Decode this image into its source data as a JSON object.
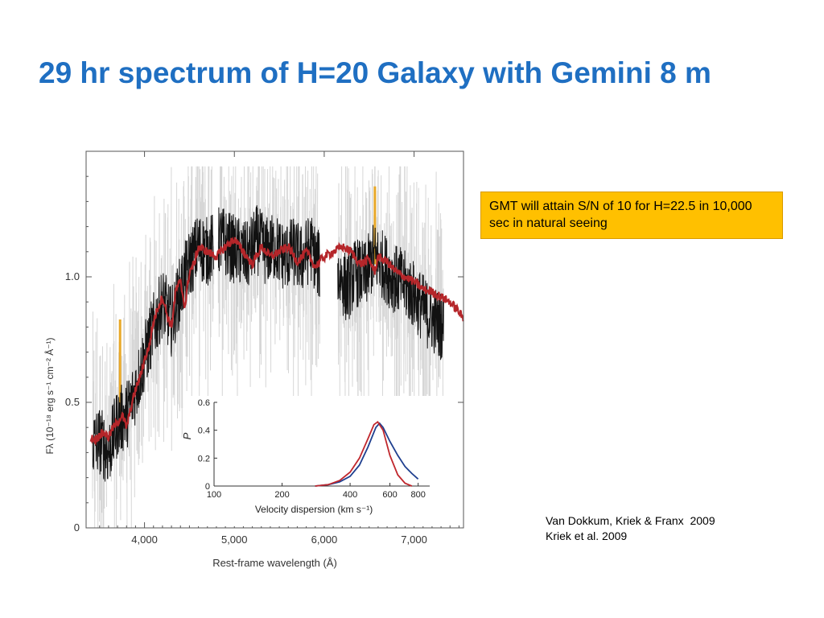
{
  "title": "29 hr spectrum of H=20 Galaxy with Gemini 8 m",
  "callout": {
    "text": "GMT will attain S/N of 10 for H=22.5 in 10,000 sec in natural seeing",
    "color": "#ffc000"
  },
  "references": [
    "Van Dokkum, Kriek & Franx  2009",
    "Kriek et al. 2009"
  ],
  "colors": {
    "title": "#1f6fc2",
    "spectrum_raw": "#d6d6d6",
    "spectrum_binned": "#111111",
    "model": "#b5262a",
    "highlight": "#e8a828",
    "inset_blue": "#1f3f8f",
    "inset_red": "#c0272d"
  },
  "chart_data": [
    {
      "type": "line",
      "xlabel": "Rest-frame wavelength (Å)",
      "ylabel": "Fλ (10⁻¹⁸ erg s⁻¹ cm⁻² Å⁻¹)",
      "xlim": [
        3350,
        7550
      ],
      "ylim": [
        0,
        1.5
      ],
      "xticks": [
        4000,
        5000,
        6000,
        7000
      ],
      "xtick_labels": [
        "4,000",
        "5,000",
        "6,000",
        "7,000"
      ],
      "yticks": [
        0,
        0.5,
        1.0
      ],
      "ytick_labels": [
        "0",
        "0.5",
        "1.0"
      ],
      "gaps": [
        [
          4770,
          4820
        ],
        [
          5950,
          6150
        ]
      ],
      "highlights": [
        {
          "x": 3728,
          "y_min": 0.45,
          "y_max": 0.83
        },
        {
          "x": 6564,
          "y_min": 1.05,
          "y_max": 1.36
        }
      ],
      "series": [
        {
          "style": "model",
          "x": [
            3400,
            3450,
            3500,
            3550,
            3600,
            3650,
            3700,
            3750,
            3800,
            3850,
            3900,
            3950,
            4000,
            4050,
            4100,
            4150,
            4200,
            4250,
            4300,
            4350,
            4400,
            4450,
            4500,
            4550,
            4600,
            4700,
            4800,
            4900,
            5000,
            5100,
            5200,
            5300,
            5400,
            5500,
            5600,
            5700,
            5800,
            5900,
            6000,
            6100,
            6200,
            6300,
            6400,
            6500,
            6560,
            6600,
            6700,
            6800,
            6900,
            7000,
            7100,
            7200,
            7300,
            7400,
            7500,
            7550
          ],
          "y": [
            0.36,
            0.35,
            0.37,
            0.38,
            0.36,
            0.4,
            0.42,
            0.45,
            0.4,
            0.48,
            0.55,
            0.6,
            0.67,
            0.72,
            0.82,
            0.88,
            0.92,
            0.85,
            0.8,
            0.95,
            0.98,
            0.88,
            1.02,
            1.05,
            1.12,
            1.1,
            1.08,
            1.12,
            1.15,
            1.1,
            1.05,
            1.12,
            1.08,
            1.1,
            1.12,
            1.06,
            1.1,
            1.04,
            1.08,
            1.1,
            1.12,
            1.1,
            1.05,
            1.07,
            1.02,
            1.08,
            1.06,
            1.02,
            1.0,
            0.98,
            0.95,
            0.94,
            0.92,
            0.9,
            0.86,
            0.83
          ]
        },
        {
          "style": "binned",
          "x": [
            3420,
            3500,
            3600,
            3700,
            3800,
            3900,
            4000,
            4100,
            4200,
            4300,
            4400,
            4500,
            4600,
            4700,
            4850,
            4950,
            5050,
            5150,
            5250,
            5350,
            5450,
            5550,
            5650,
            5750,
            5850,
            5930,
            6180,
            6250,
            6350,
            6450,
            6550,
            6650,
            6750,
            6850,
            6950,
            7050,
            7150,
            7250,
            7330
          ],
          "y": [
            0.33,
            0.35,
            0.3,
            0.42,
            0.45,
            0.55,
            0.68,
            0.8,
            0.9,
            0.82,
            0.95,
            1.05,
            1.12,
            1.1,
            1.15,
            1.12,
            1.1,
            1.08,
            1.15,
            1.1,
            1.12,
            1.08,
            1.1,
            1.07,
            1.12,
            1.05,
            1.0,
            0.95,
            1.02,
            1.0,
            1.08,
            1.05,
            1.0,
            0.98,
            0.95,
            0.9,
            0.85,
            0.82,
            0.8
          ]
        }
      ]
    },
    {
      "type": "line",
      "xlabel": "Velocity dispersion (km s⁻¹)",
      "ylabel": "P",
      "xscale": "log",
      "xlim": [
        100,
        900
      ],
      "ylim": [
        0,
        0.6
      ],
      "xticks": [
        100,
        200,
        400,
        600,
        800
      ],
      "xtick_labels": [
        "100",
        "200",
        "400",
        "600",
        "800"
      ],
      "yticks": [
        0,
        0.2,
        0.4,
        0.6
      ],
      "ytick_labels": [
        "0",
        "0.2",
        "0.4",
        "0.6"
      ],
      "series": [
        {
          "style": "inset_blue",
          "x": [
            280,
            320,
            360,
            400,
            440,
            480,
            520,
            540,
            560,
            600,
            650,
            700,
            750,
            800
          ],
          "y": [
            0.0,
            0.01,
            0.03,
            0.07,
            0.15,
            0.28,
            0.42,
            0.45,
            0.42,
            0.32,
            0.22,
            0.14,
            0.09,
            0.05
          ]
        },
        {
          "style": "inset_red",
          "x": [
            280,
            320,
            360,
            400,
            440,
            480,
            510,
            530,
            560,
            600,
            650,
            700,
            750
          ],
          "y": [
            0.0,
            0.01,
            0.04,
            0.1,
            0.2,
            0.34,
            0.44,
            0.46,
            0.4,
            0.22,
            0.08,
            0.02,
            0.0
          ]
        }
      ]
    }
  ]
}
